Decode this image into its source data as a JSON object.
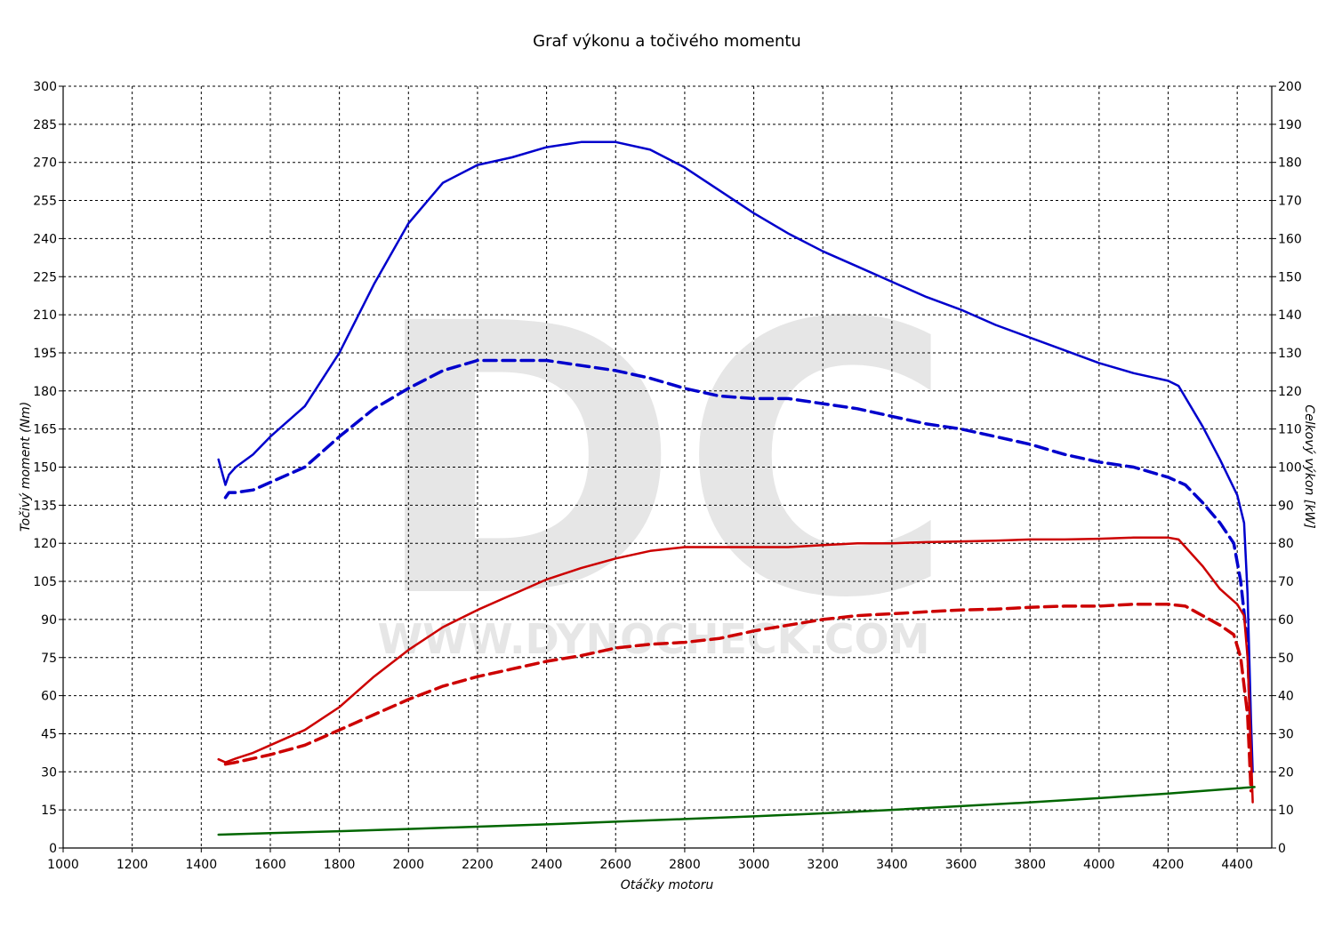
{
  "chart_data": {
    "type": "line",
    "title": "Graf výkonu a točivého momentu",
    "xlabel": "Otáčky motoru",
    "ylabel_left": "Točivý moment (Nm)",
    "ylabel_right": "Celkový výkon [kW]",
    "xlim": [
      1000,
      4500
    ],
    "ylim_left": [
      0,
      300
    ],
    "ylim_right": [
      0,
      200
    ],
    "x_ticks": [
      1000,
      1200,
      1400,
      1600,
      1800,
      2000,
      2200,
      2400,
      2600,
      2800,
      3000,
      3200,
      3400,
      3600,
      3800,
      4000,
      4200,
      4400
    ],
    "y_ticks_left": [
      0,
      15,
      30,
      45,
      60,
      75,
      90,
      105,
      120,
      135,
      150,
      165,
      180,
      195,
      210,
      225,
      240,
      255,
      270,
      285,
      300
    ],
    "y_ticks_right": [
      0,
      10,
      20,
      30,
      40,
      50,
      60,
      70,
      80,
      90,
      100,
      110,
      120,
      130,
      140,
      150,
      160,
      170,
      180,
      190,
      200
    ],
    "grid": true,
    "watermark": {
      "big": "DC",
      "url": "WWW.DYNOCHECK.COM"
    },
    "series": [
      {
        "key": "torque_tuned",
        "axis": "left",
        "color": "#0000cc",
        "dash": false,
        "points": [
          [
            1450,
            153
          ],
          [
            1470,
            143
          ],
          [
            1480,
            147
          ],
          [
            1500,
            150
          ],
          [
            1550,
            155
          ],
          [
            1600,
            162
          ],
          [
            1700,
            174
          ],
          [
            1800,
            195
          ],
          [
            1900,
            222
          ],
          [
            2000,
            246
          ],
          [
            2100,
            262
          ],
          [
            2200,
            269
          ],
          [
            2300,
            272
          ],
          [
            2400,
            276
          ],
          [
            2500,
            278
          ],
          [
            2600,
            278
          ],
          [
            2700,
            275
          ],
          [
            2800,
            268
          ],
          [
            2900,
            259
          ],
          [
            3000,
            250
          ],
          [
            3100,
            242
          ],
          [
            3200,
            235
          ],
          [
            3300,
            229
          ],
          [
            3400,
            223
          ],
          [
            3500,
            217
          ],
          [
            3600,
            212
          ],
          [
            3700,
            206
          ],
          [
            3800,
            201
          ],
          [
            3900,
            196
          ],
          [
            4000,
            191
          ],
          [
            4100,
            187
          ],
          [
            4200,
            184
          ],
          [
            4230,
            182
          ],
          [
            4300,
            166
          ],
          [
            4350,
            153
          ],
          [
            4400,
            139
          ],
          [
            4420,
            128
          ],
          [
            4430,
            100
          ],
          [
            4440,
            50
          ],
          [
            4445,
            30
          ]
        ]
      },
      {
        "key": "torque_stock",
        "axis": "left",
        "color": "#0000cc",
        "dash": true,
        "points": [
          [
            1470,
            138
          ],
          [
            1480,
            140
          ],
          [
            1500,
            140
          ],
          [
            1550,
            141
          ],
          [
            1600,
            144
          ],
          [
            1700,
            150
          ],
          [
            1800,
            162
          ],
          [
            1900,
            173
          ],
          [
            2000,
            181
          ],
          [
            2100,
            188
          ],
          [
            2200,
            192
          ],
          [
            2300,
            192
          ],
          [
            2400,
            192
          ],
          [
            2500,
            190
          ],
          [
            2600,
            188
          ],
          [
            2700,
            185
          ],
          [
            2800,
            181
          ],
          [
            2900,
            178
          ],
          [
            3000,
            177
          ],
          [
            3100,
            177
          ],
          [
            3200,
            175
          ],
          [
            3300,
            173
          ],
          [
            3400,
            170
          ],
          [
            3500,
            167
          ],
          [
            3600,
            165
          ],
          [
            3700,
            162
          ],
          [
            3800,
            159
          ],
          [
            3900,
            155
          ],
          [
            4000,
            152
          ],
          [
            4100,
            150
          ],
          [
            4200,
            146
          ],
          [
            4250,
            143
          ],
          [
            4300,
            136
          ],
          [
            4350,
            128
          ],
          [
            4390,
            120
          ],
          [
            4410,
            105
          ],
          [
            4430,
            80
          ],
          [
            4440,
            40
          ]
        ]
      },
      {
        "key": "power_tuned",
        "axis": "right",
        "color": "#cc0000",
        "dash": false,
        "points": [
          [
            1450,
            23.3
          ],
          [
            1470,
            22.5
          ],
          [
            1500,
            23.5
          ],
          [
            1550,
            25
          ],
          [
            1600,
            27
          ],
          [
            1700,
            31
          ],
          [
            1800,
            37
          ],
          [
            1900,
            45
          ],
          [
            2000,
            52
          ],
          [
            2100,
            58
          ],
          [
            2200,
            62.5
          ],
          [
            2300,
            66.5
          ],
          [
            2400,
            70.5
          ],
          [
            2500,
            73.5
          ],
          [
            2600,
            76
          ],
          [
            2700,
            78
          ],
          [
            2800,
            79
          ],
          [
            2900,
            79
          ],
          [
            3000,
            79
          ],
          [
            3100,
            79
          ],
          [
            3200,
            79.5
          ],
          [
            3300,
            80
          ],
          [
            3400,
            80
          ],
          [
            3500,
            80.3
          ],
          [
            3600,
            80.5
          ],
          [
            3700,
            80.7
          ],
          [
            3800,
            81
          ],
          [
            3900,
            81
          ],
          [
            4000,
            81.2
          ],
          [
            4100,
            81.5
          ],
          [
            4200,
            81.5
          ],
          [
            4230,
            81
          ],
          [
            4300,
            74
          ],
          [
            4350,
            68
          ],
          [
            4400,
            64
          ],
          [
            4420,
            61
          ],
          [
            4430,
            50
          ],
          [
            4440,
            25
          ],
          [
            4445,
            12
          ]
        ]
      },
      {
        "key": "power_stock",
        "axis": "right",
        "color": "#cc0000",
        "dash": true,
        "points": [
          [
            1470,
            22
          ],
          [
            1500,
            22.5
          ],
          [
            1550,
            23.5
          ],
          [
            1600,
            24.5
          ],
          [
            1700,
            27
          ],
          [
            1800,
            31
          ],
          [
            1900,
            35
          ],
          [
            2000,
            39
          ],
          [
            2100,
            42.5
          ],
          [
            2200,
            45
          ],
          [
            2300,
            47
          ],
          [
            2400,
            49
          ],
          [
            2500,
            50.5
          ],
          [
            2600,
            52.5
          ],
          [
            2700,
            53.5
          ],
          [
            2800,
            54
          ],
          [
            2900,
            55
          ],
          [
            3000,
            57
          ],
          [
            3100,
            58.5
          ],
          [
            3200,
            60
          ],
          [
            3300,
            61
          ],
          [
            3400,
            61.5
          ],
          [
            3500,
            62
          ],
          [
            3600,
            62.5
          ],
          [
            3700,
            62.7
          ],
          [
            3800,
            63.2
          ],
          [
            3900,
            63.5
          ],
          [
            4000,
            63.5
          ],
          [
            4100,
            64
          ],
          [
            4200,
            64
          ],
          [
            4250,
            63.5
          ],
          [
            4300,
            61
          ],
          [
            4350,
            58.5
          ],
          [
            4390,
            56
          ],
          [
            4410,
            50
          ],
          [
            4430,
            35
          ],
          [
            4440,
            15
          ]
        ]
      },
      {
        "key": "loss",
        "axis": "right",
        "color": "#006600",
        "dash": false,
        "points": [
          [
            1450,
            3.5
          ],
          [
            1600,
            3.9
          ],
          [
            1800,
            4.4
          ],
          [
            2000,
            5
          ],
          [
            2200,
            5.6
          ],
          [
            2400,
            6.2
          ],
          [
            2600,
            6.9
          ],
          [
            2800,
            7.6
          ],
          [
            3000,
            8.3
          ],
          [
            3200,
            9.1
          ],
          [
            3400,
            10
          ],
          [
            3600,
            11
          ],
          [
            3800,
            12
          ],
          [
            4000,
            13.1
          ],
          [
            4200,
            14.3
          ],
          [
            4450,
            16
          ]
        ]
      }
    ]
  }
}
